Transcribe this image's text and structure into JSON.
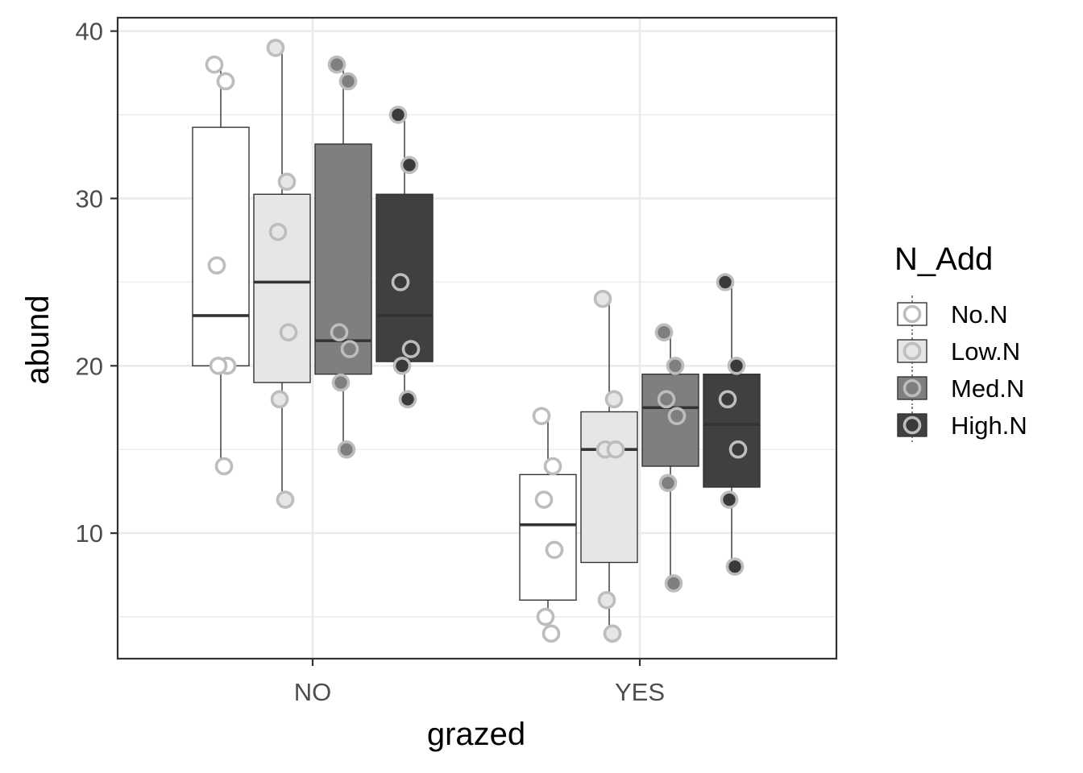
{
  "chart_data": {
    "type": "box",
    "xlabel": "grazed",
    "ylabel": "abund",
    "categories": [
      "NO",
      "YES"
    ],
    "ylim": [
      2.5,
      40.8
    ],
    "yticks": [
      10,
      20,
      30,
      40
    ],
    "grid": true,
    "legend": {
      "title": "N_Add",
      "position": "right"
    },
    "series": [
      {
        "name": "No.N",
        "fill": "#ffffff",
        "point_fill": "#ffffff",
        "boxes": [
          {
            "category": "NO",
            "min": 14,
            "q1": 20,
            "median": 23,
            "q3": 34.25,
            "max": 38,
            "points": [
              38,
              37,
              26,
              20,
              20,
              14
            ],
            "outliers": []
          },
          {
            "category": "YES",
            "min": 4,
            "q1": 6,
            "median": 10.5,
            "q3": 13.5,
            "max": 17,
            "points": [
              17,
              14,
              12,
              9,
              5,
              4
            ],
            "outliers": []
          }
        ]
      },
      {
        "name": "Low.N",
        "fill": "#e6e6e6",
        "point_fill": "#e6e6e6",
        "boxes": [
          {
            "category": "NO",
            "min": 12,
            "q1": 19,
            "median": 25,
            "q3": 30.25,
            "max": 39,
            "points": [
              39,
              31,
              28,
              22,
              18,
              12
            ],
            "outliers": []
          },
          {
            "category": "YES",
            "min": 4,
            "q1": 8.25,
            "median": 15,
            "q3": 17.25,
            "max": 24,
            "points": [
              24,
              18,
              15,
              15,
              6,
              4
            ],
            "outliers": []
          }
        ]
      },
      {
        "name": "Med.N",
        "fill": "#7f7f7f",
        "point_fill": "#7f7f7f",
        "boxes": [
          {
            "category": "NO",
            "min": 15,
            "q1": 19.5,
            "median": 21.5,
            "q3": 33.25,
            "max": 38,
            "points": [
              38,
              37,
              22,
              21,
              19,
              15
            ],
            "outliers": []
          },
          {
            "category": "YES",
            "min": 7,
            "q1": 14,
            "median": 17.5,
            "q3": 19.5,
            "max": 22,
            "points": [
              22,
              20,
              18,
              17,
              13,
              7
            ],
            "outliers": []
          }
        ]
      },
      {
        "name": "High.N",
        "fill": "#404040",
        "point_fill": "#3a3a3a",
        "boxes": [
          {
            "category": "NO",
            "min": 18,
            "q1": 20.25,
            "median": 23,
            "q3": 30.25,
            "max": 35,
            "points": [
              35,
              32,
              25,
              21,
              20,
              18
            ],
            "outliers": []
          },
          {
            "category": "YES",
            "min": 8,
            "q1": 12.75,
            "median": 16.5,
            "q3": 19.5,
            "max": 25,
            "points": [
              25,
              20,
              18,
              15,
              12,
              8
            ],
            "outliers": []
          }
        ]
      }
    ],
    "colors": {
      "point_stroke": "#bdbdbd",
      "box_stroke": "#333333",
      "median": "#333333",
      "grid": "#ebebeb",
      "panel_border": "#333333",
      "text": "#4d4d4d",
      "title_text": "#000000"
    }
  }
}
